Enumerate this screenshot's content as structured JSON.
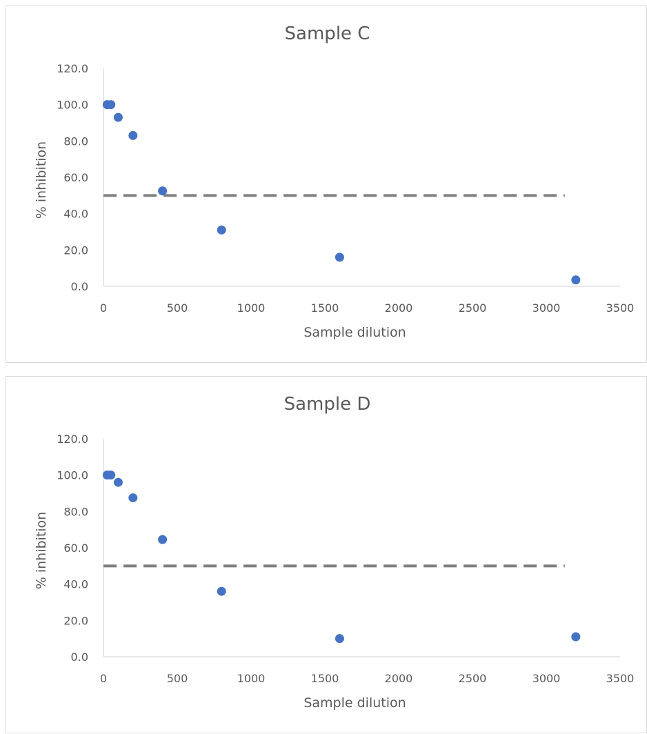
{
  "chart_data": [
    {
      "type": "scatter",
      "title": "Sample C",
      "xlabel": "Sample dilution",
      "ylabel": "% inhibition",
      "xlim": [
        0,
        3500
      ],
      "ylim": [
        0,
        120
      ],
      "x_ticks": [
        "0",
        "500",
        "1000",
        "1500",
        "2000",
        "2500",
        "3000",
        "3500"
      ],
      "y_ticks": [
        "0.0",
        "20.0",
        "40.0",
        "60.0",
        "80.0",
        "100.0",
        "120.0"
      ],
      "grid": false,
      "legend": "none",
      "series": [
        {
          "color": "#4472c4",
          "marker": "circle",
          "x": [
            25,
            50,
            100,
            200,
            400,
            800,
            1600,
            3200
          ],
          "y": [
            100.0,
            100.0,
            93.0,
            83.0,
            52.5,
            31.0,
            16.0,
            3.5
          ]
        },
        {
          "color": "#7f7f7f",
          "style": "dashed-line",
          "x": [
            0,
            3125
          ],
          "y": [
            50,
            50
          ]
        }
      ]
    },
    {
      "type": "scatter",
      "title": "Sample D",
      "xlabel": "Sample dilution",
      "ylabel": "% inhibition",
      "xlim": [
        0,
        3500
      ],
      "ylim": [
        0,
        120
      ],
      "x_ticks": [
        "0",
        "500",
        "1000",
        "1500",
        "2000",
        "2500",
        "3000",
        "3500"
      ],
      "y_ticks": [
        "0.0",
        "20.0",
        "40.0",
        "60.0",
        "80.0",
        "100.0",
        "120.0"
      ],
      "grid": false,
      "legend": "none",
      "series": [
        {
          "color": "#4472c4",
          "marker": "circle",
          "x": [
            25,
            50,
            100,
            200,
            400,
            800,
            1600,
            3200
          ],
          "y": [
            100.0,
            100.0,
            96.0,
            87.5,
            64.5,
            36.0,
            10.0,
            11.0
          ]
        },
        {
          "color": "#7f7f7f",
          "style": "dashed-line",
          "x": [
            0,
            3125
          ],
          "y": [
            50,
            50
          ]
        }
      ]
    }
  ]
}
